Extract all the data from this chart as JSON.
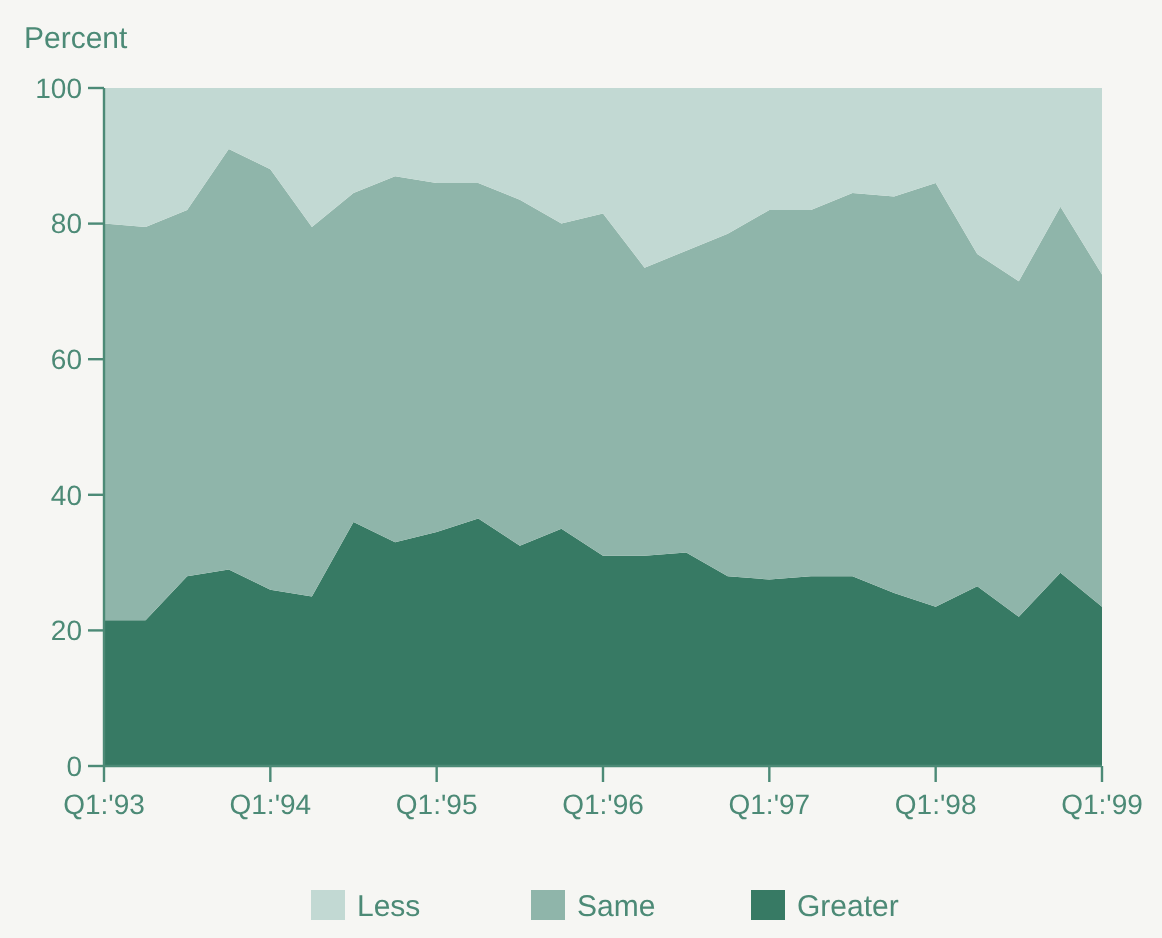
{
  "chart_data": {
    "type": "area",
    "stacked": true,
    "ylabel": "Percent",
    "categories": [
      "Q1:'93",
      null,
      null,
      null,
      "Q1:'94",
      null,
      null,
      null,
      "Q1:'95",
      null,
      null,
      null,
      "Q1:'96",
      null,
      null,
      null,
      "Q1:'97",
      null,
      null,
      null,
      "Q1:'98",
      null,
      null,
      null,
      "Q1:'99"
    ],
    "ylim": [
      0,
      100
    ],
    "yticks": [
      0,
      20,
      40,
      60,
      80,
      100
    ],
    "grid": false,
    "legend": "bottom",
    "series": [
      {
        "name": "Greater",
        "color": "#377a64",
        "values": [
          21.5,
          21.5,
          28,
          29,
          26,
          25,
          36,
          33,
          34.5,
          36.5,
          32.5,
          35,
          31,
          31,
          31.5,
          28,
          27.5,
          28,
          28,
          25.5,
          23.5,
          26.5,
          22,
          28.5,
          23.5
        ]
      },
      {
        "name": "Same",
        "color": "#8fb5aa",
        "values": [
          58.5,
          58,
          54,
          62,
          62,
          54.5,
          48.5,
          54,
          51.5,
          49.5,
          51,
          45,
          50.5,
          42.5,
          44.5,
          50.5,
          54.5,
          54,
          56.5,
          58.5,
          62.5,
          49,
          49.5,
          54,
          49
        ]
      },
      {
        "name": "Less",
        "color": "#c2d9d3",
        "values": [
          20,
          20.5,
          18,
          9,
          12,
          20.5,
          15.5,
          13,
          14,
          14,
          16.5,
          20,
          18.5,
          26.5,
          24,
          21.5,
          18,
          18,
          15.5,
          16,
          14,
          24.5,
          28.5,
          17.5,
          27.5
        ]
      }
    ]
  }
}
